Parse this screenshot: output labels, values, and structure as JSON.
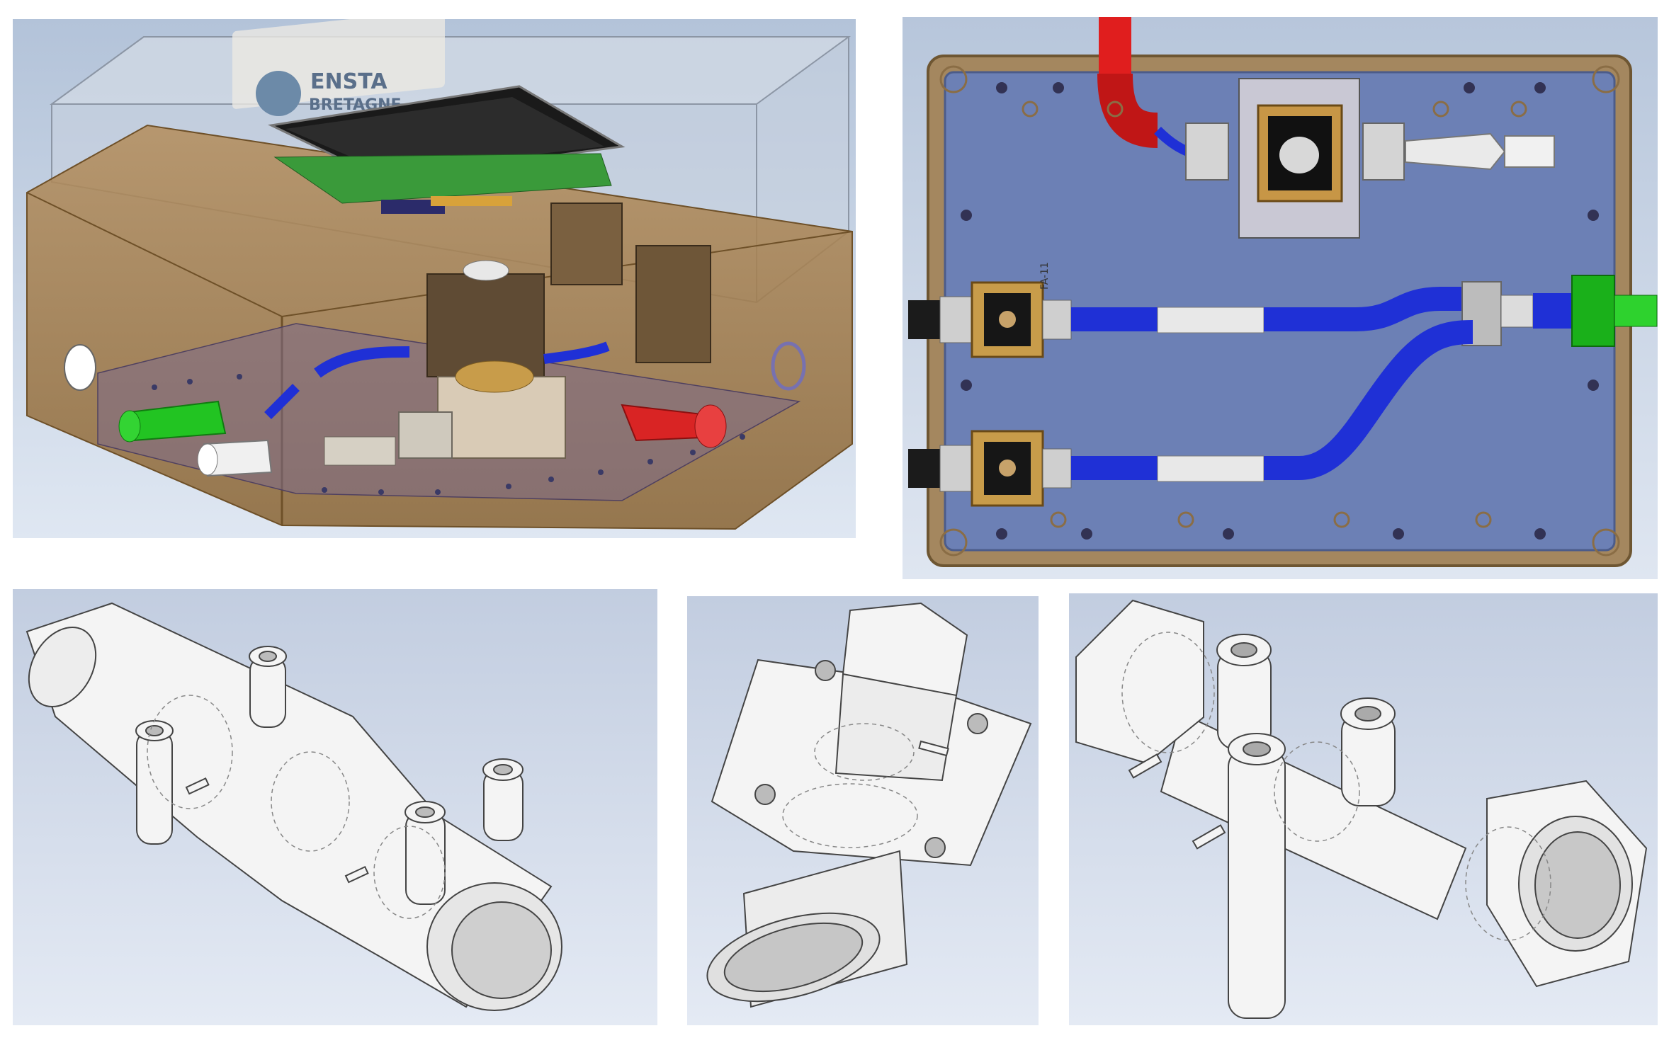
{
  "figure": {
    "panels": [
      {
        "id": "assembly-iso",
        "view": "isometric"
      },
      {
        "id": "assembly-top",
        "view": "top"
      },
      {
        "id": "venturi-part",
        "view": "isometric"
      },
      {
        "id": "flange-part",
        "view": "isometric"
      },
      {
        "id": "nut-tee-part",
        "view": "isometric"
      }
    ],
    "logo_text": "ENSTA BRETAGNE",
    "logo_line1": "ENSTA",
    "logo_line2": "BRETAGNE",
    "top_view_side_label": "FA-11",
    "colors": {
      "background_top": "#b3c3d9",
      "background_bottom": "#dee6f2",
      "enclosure": "#a77b42",
      "plate_blue": "#6b7fb3",
      "tube_blue": "#1f30d6",
      "tube_red": "#e01e1e",
      "tube_green": "#1fc21f",
      "brass": "#c89c4a",
      "pcb_green": "#3a9a3a",
      "screen_black": "#1a1a1a",
      "part_white": "#f4f4f4"
    }
  }
}
